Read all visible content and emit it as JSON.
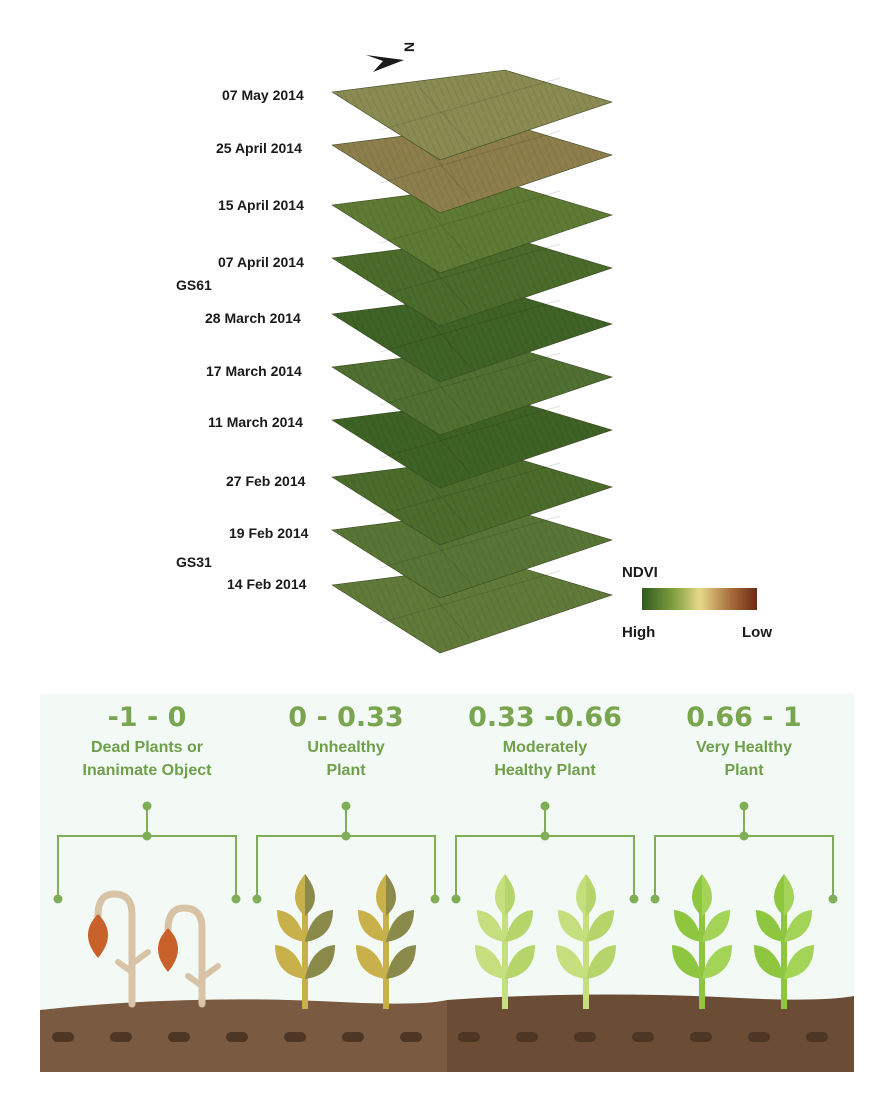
{
  "stack": {
    "north_label": "N",
    "dates": [
      "07 May 2014",
      "25 April 2014",
      "15 April 2014",
      "07 April 2014",
      "28 March 2014",
      "17 March 2014",
      "11 March 2014",
      "27 Feb 2014",
      "19 Feb 2014",
      "14 Feb 2014"
    ],
    "growth_stages": [
      "GS61",
      "GS31"
    ],
    "layer_tones": [
      "#8a8a52",
      "#8d7e4c",
      "#5f7a34",
      "#4a6b2a",
      "#3f6226",
      "#4f7030",
      "#3e6225",
      "#4b6c2b",
      "#597536",
      "#617a3a"
    ]
  },
  "legend": {
    "title": "NDVI",
    "high_label": "High",
    "low_label": "Low",
    "colors": [
      "#2f5a1e",
      "#8aa544",
      "#e8d98a",
      "#a56a3a",
      "#6b2a14"
    ]
  },
  "categories": [
    {
      "range": "-1 - 0",
      "desc_line1": "Dead Plants or",
      "desc_line2": "Inanimate Object"
    },
    {
      "range": "0 - 0.33",
      "desc_line1": "Unhealthy",
      "desc_line2": "Plant"
    },
    {
      "range": "0.33 -0.66",
      "desc_line1": "Moderately",
      "desc_line2": "Healthy Plant"
    },
    {
      "range": "0.66 - 1",
      "desc_line1": "Very Healthy",
      "desc_line2": "Plant"
    }
  ],
  "colors": {
    "bracket": "#7fae56",
    "soil_light": "#7a5a40",
    "soil_dark": "#6b4c34",
    "dead_stem": "#d9c3a7",
    "dead_leaf": "#c8622a",
    "unhealthy_leaf_a": "#c8b04a",
    "unhealthy_leaf_b": "#8a8a4a",
    "moderate_leaf": "#c6df7e",
    "healthy_leaf": "#8ec640"
  }
}
